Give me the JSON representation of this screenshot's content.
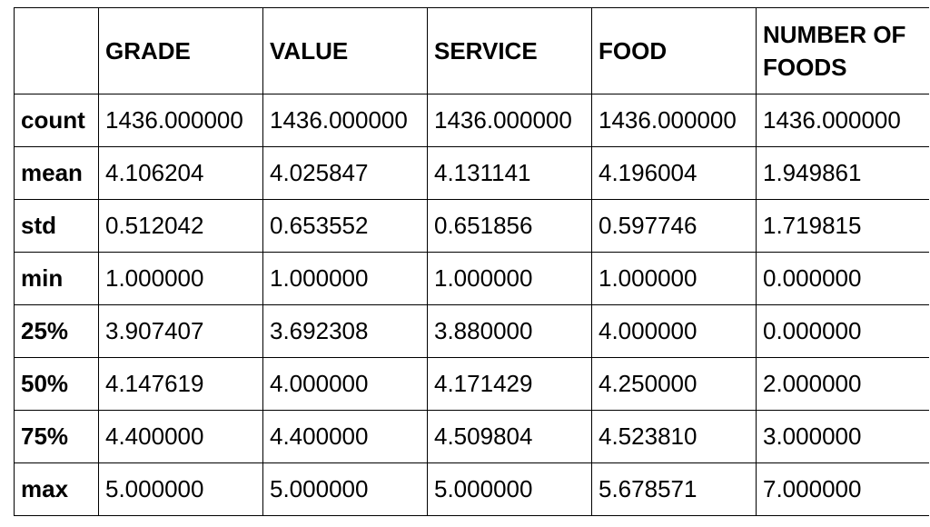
{
  "table": {
    "corner": "",
    "columns": [
      "GRADE",
      "VALUE",
      "SERVICE",
      "FOOD",
      "NUMBER OF FOODS"
    ],
    "rows": [
      {
        "label": "count",
        "values": [
          "1436.000000",
          "1436.000000",
          "1436.000000",
          "1436.000000",
          "1436.000000"
        ]
      },
      {
        "label": "mean",
        "values": [
          "4.106204",
          "4.025847",
          "4.131141",
          "4.196004",
          "1.949861"
        ]
      },
      {
        "label": "std",
        "values": [
          "0.512042",
          "0.653552",
          "0.651856",
          "0.597746",
          "1.719815"
        ]
      },
      {
        "label": "min",
        "values": [
          "1.000000",
          "1.000000",
          "1.000000",
          "1.000000",
          "0.000000"
        ]
      },
      {
        "label": "25%",
        "values": [
          "3.907407",
          "3.692308",
          "3.880000",
          "4.000000",
          "0.000000"
        ]
      },
      {
        "label": "50%",
        "values": [
          "4.147619",
          "4.000000",
          "4.171429",
          "4.250000",
          "2.000000"
        ]
      },
      {
        "label": "75%",
        "values": [
          "4.400000",
          "4.400000",
          "4.509804",
          "4.523810",
          "3.000000"
        ]
      },
      {
        "label": "max",
        "values": [
          "5.000000",
          "5.000000",
          "5.000000",
          "5.678571",
          "7.000000"
        ]
      }
    ]
  }
}
